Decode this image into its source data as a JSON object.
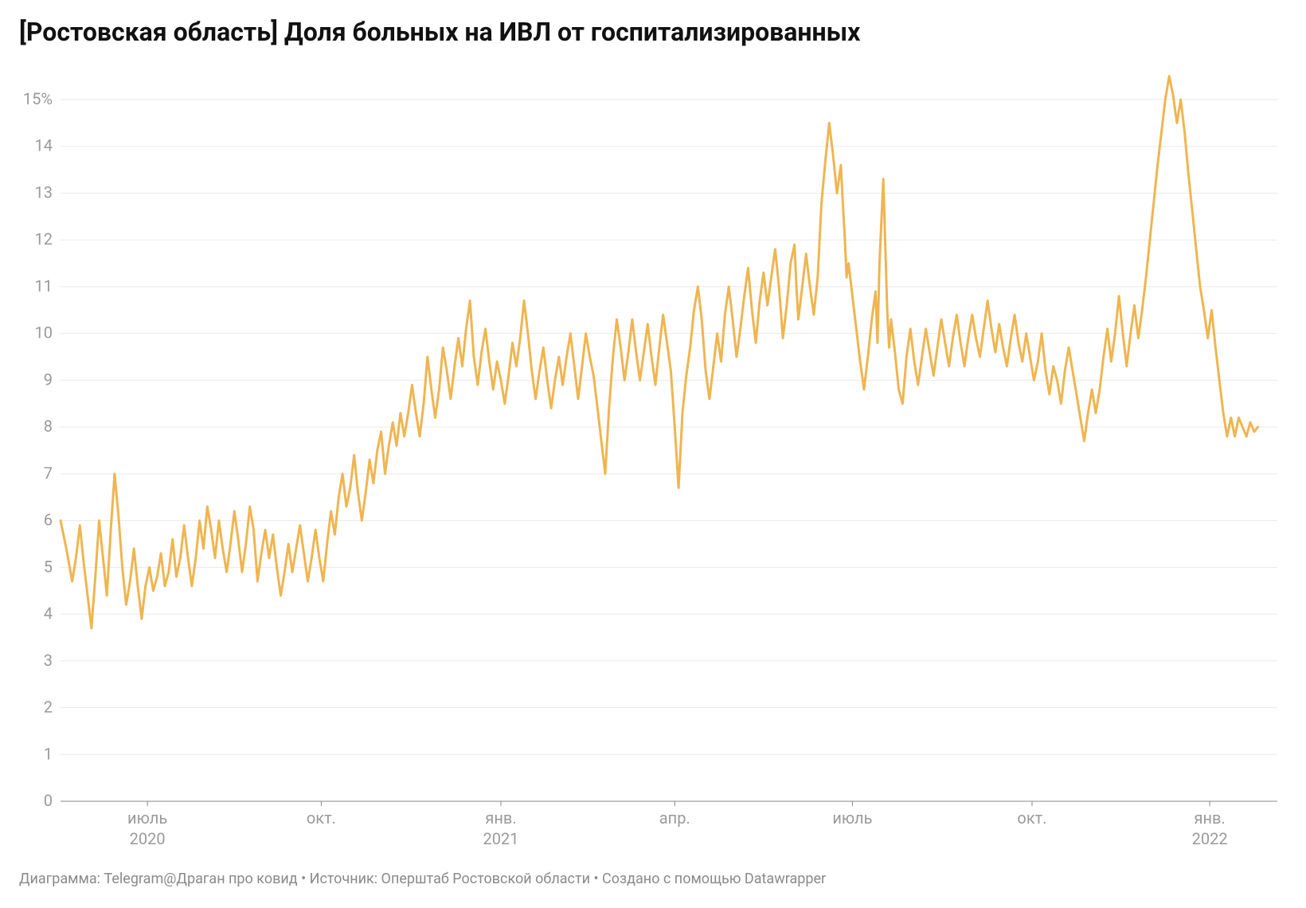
{
  "title": "[Ростовская область] Доля больных на ИВЛ от госпитализированных",
  "footer": "Диаграмма: Telegram@Драган про ковид • Источник: Оперштаб Ростовской области • Создано с помощью Datawrapper",
  "chart": {
    "type": "line",
    "background_color": "#ffffff",
    "grid_color": "#e9e9e9",
    "baseline_color": "#888888",
    "axis_text_color": "#9a9a9a",
    "series_color": "#efb550",
    "line_width": 3,
    "title_fontsize": 32,
    "axis_fontsize": 20,
    "footer_fontsize": 18,
    "x": {
      "domain_min": 0,
      "domain_max": 630,
      "ticks": [
        {
          "pos": 45,
          "label": "июль",
          "year": "2020"
        },
        {
          "pos": 135,
          "label": "окт.",
          "year": ""
        },
        {
          "pos": 228,
          "label": "янв.",
          "year": "2021"
        },
        {
          "pos": 318,
          "label": "апр.",
          "year": ""
        },
        {
          "pos": 410,
          "label": "июль",
          "year": ""
        },
        {
          "pos": 503,
          "label": "окт.",
          "year": ""
        },
        {
          "pos": 595,
          "label": "янв.",
          "year": "2022"
        }
      ]
    },
    "y": {
      "domain_min": 0,
      "domain_max": 15.8,
      "ticks": [
        0,
        1,
        2,
        3,
        4,
        5,
        6,
        7,
        8,
        9,
        10,
        11,
        12,
        13,
        14
      ],
      "top_tick_label": "15%"
    },
    "data": [
      [
        0,
        6.0
      ],
      [
        3,
        5.4
      ],
      [
        6,
        4.7
      ],
      [
        8,
        5.2
      ],
      [
        10,
        5.9
      ],
      [
        12,
        5.1
      ],
      [
        14,
        4.4
      ],
      [
        16,
        3.7
      ],
      [
        18,
        4.8
      ],
      [
        20,
        6.0
      ],
      [
        22,
        5.2
      ],
      [
        24,
        4.4
      ],
      [
        26,
        5.8
      ],
      [
        28,
        7.0
      ],
      [
        30,
        6.1
      ],
      [
        32,
        5.0
      ],
      [
        34,
        4.2
      ],
      [
        36,
        4.7
      ],
      [
        38,
        5.4
      ],
      [
        40,
        4.6
      ],
      [
        42,
        3.9
      ],
      [
        44,
        4.6
      ],
      [
        46,
        5.0
      ],
      [
        48,
        4.5
      ],
      [
        50,
        4.8
      ],
      [
        52,
        5.3
      ],
      [
        54,
        4.6
      ],
      [
        56,
        4.9
      ],
      [
        58,
        5.6
      ],
      [
        60,
        4.8
      ],
      [
        62,
        5.2
      ],
      [
        64,
        5.9
      ],
      [
        66,
        5.2
      ],
      [
        68,
        4.6
      ],
      [
        70,
        5.2
      ],
      [
        72,
        6.0
      ],
      [
        74,
        5.4
      ],
      [
        76,
        6.3
      ],
      [
        78,
        5.8
      ],
      [
        80,
        5.2
      ],
      [
        82,
        6.0
      ],
      [
        84,
        5.4
      ],
      [
        86,
        4.9
      ],
      [
        88,
        5.5
      ],
      [
        90,
        6.2
      ],
      [
        92,
        5.6
      ],
      [
        94,
        4.9
      ],
      [
        96,
        5.5
      ],
      [
        98,
        6.3
      ],
      [
        100,
        5.8
      ],
      [
        102,
        4.7
      ],
      [
        104,
        5.3
      ],
      [
        106,
        5.8
      ],
      [
        108,
        5.2
      ],
      [
        110,
        5.7
      ],
      [
        112,
        5.0
      ],
      [
        114,
        4.4
      ],
      [
        116,
        4.9
      ],
      [
        118,
        5.5
      ],
      [
        120,
        4.9
      ],
      [
        122,
        5.4
      ],
      [
        124,
        5.9
      ],
      [
        126,
        5.3
      ],
      [
        128,
        4.7
      ],
      [
        130,
        5.2
      ],
      [
        132,
        5.8
      ],
      [
        134,
        5.2
      ],
      [
        136,
        4.7
      ],
      [
        138,
        5.5
      ],
      [
        140,
        6.2
      ],
      [
        142,
        5.7
      ],
      [
        144,
        6.5
      ],
      [
        146,
        7.0
      ],
      [
        148,
        6.3
      ],
      [
        150,
        6.7
      ],
      [
        152,
        7.4
      ],
      [
        154,
        6.6
      ],
      [
        156,
        6.0
      ],
      [
        158,
        6.6
      ],
      [
        160,
        7.3
      ],
      [
        162,
        6.8
      ],
      [
        164,
        7.5
      ],
      [
        166,
        7.9
      ],
      [
        168,
        7.0
      ],
      [
        170,
        7.6
      ],
      [
        172,
        8.1
      ],
      [
        174,
        7.6
      ],
      [
        176,
        8.3
      ],
      [
        178,
        7.8
      ],
      [
        180,
        8.3
      ],
      [
        182,
        8.9
      ],
      [
        184,
        8.3
      ],
      [
        186,
        7.8
      ],
      [
        188,
        8.5
      ],
      [
        190,
        9.5
      ],
      [
        192,
        8.8
      ],
      [
        194,
        8.2
      ],
      [
        196,
        8.8
      ],
      [
        198,
        9.7
      ],
      [
        200,
        9.2
      ],
      [
        202,
        8.6
      ],
      [
        204,
        9.3
      ],
      [
        206,
        9.9
      ],
      [
        208,
        9.3
      ],
      [
        210,
        10.1
      ],
      [
        212,
        10.7
      ],
      [
        214,
        9.5
      ],
      [
        216,
        8.9
      ],
      [
        218,
        9.6
      ],
      [
        220,
        10.1
      ],
      [
        222,
        9.4
      ],
      [
        224,
        8.8
      ],
      [
        226,
        9.4
      ],
      [
        228,
        9.0
      ],
      [
        230,
        8.5
      ],
      [
        232,
        9.1
      ],
      [
        234,
        9.8
      ],
      [
        236,
        9.3
      ],
      [
        238,
        9.9
      ],
      [
        240,
        10.7
      ],
      [
        242,
        10.0
      ],
      [
        244,
        9.2
      ],
      [
        246,
        8.6
      ],
      [
        248,
        9.2
      ],
      [
        250,
        9.7
      ],
      [
        252,
        9.0
      ],
      [
        254,
        8.4
      ],
      [
        256,
        9.0
      ],
      [
        258,
        9.5
      ],
      [
        260,
        8.9
      ],
      [
        262,
        9.5
      ],
      [
        264,
        10.0
      ],
      [
        266,
        9.3
      ],
      [
        268,
        8.6
      ],
      [
        270,
        9.3
      ],
      [
        272,
        10.0
      ],
      [
        274,
        9.5
      ],
      [
        276,
        9.1
      ],
      [
        278,
        8.4
      ],
      [
        280,
        7.7
      ],
      [
        282,
        7.0
      ],
      [
        284,
        8.4
      ],
      [
        286,
        9.5
      ],
      [
        288,
        10.3
      ],
      [
        290,
        9.7
      ],
      [
        292,
        9.0
      ],
      [
        294,
        9.6
      ],
      [
        296,
        10.3
      ],
      [
        298,
        9.6
      ],
      [
        300,
        9.0
      ],
      [
        302,
        9.6
      ],
      [
        304,
        10.2
      ],
      [
        306,
        9.5
      ],
      [
        308,
        8.9
      ],
      [
        310,
        9.7
      ],
      [
        312,
        10.4
      ],
      [
        314,
        9.8
      ],
      [
        316,
        9.2
      ],
      [
        318,
        8.0
      ],
      [
        320,
        6.7
      ],
      [
        322,
        8.3
      ],
      [
        324,
        9.1
      ],
      [
        326,
        9.7
      ],
      [
        328,
        10.5
      ],
      [
        330,
        11.0
      ],
      [
        332,
        10.3
      ],
      [
        334,
        9.2
      ],
      [
        336,
        8.6
      ],
      [
        338,
        9.3
      ],
      [
        340,
        10.0
      ],
      [
        342,
        9.4
      ],
      [
        344,
        10.4
      ],
      [
        346,
        11.0
      ],
      [
        348,
        10.3
      ],
      [
        350,
        9.5
      ],
      [
        352,
        10.1
      ],
      [
        354,
        10.8
      ],
      [
        356,
        11.4
      ],
      [
        358,
        10.5
      ],
      [
        360,
        9.8
      ],
      [
        362,
        10.7
      ],
      [
        364,
        11.3
      ],
      [
        366,
        10.6
      ],
      [
        368,
        11.2
      ],
      [
        370,
        11.8
      ],
      [
        372,
        11.0
      ],
      [
        374,
        9.9
      ],
      [
        376,
        10.6
      ],
      [
        378,
        11.5
      ],
      [
        380,
        11.9
      ],
      [
        381,
        11.0
      ],
      [
        382,
        10.3
      ],
      [
        384,
        11.0
      ],
      [
        386,
        11.7
      ],
      [
        388,
        11.0
      ],
      [
        390,
        10.4
      ],
      [
        392,
        11.2
      ],
      [
        394,
        12.8
      ],
      [
        396,
        13.7
      ],
      [
        398,
        14.5
      ],
      [
        400,
        13.8
      ],
      [
        402,
        13.0
      ],
      [
        404,
        13.6
      ],
      [
        405,
        12.8
      ],
      [
        406,
        12.1
      ],
      [
        407,
        11.2
      ],
      [
        408,
        11.5
      ],
      [
        410,
        10.8
      ],
      [
        412,
        10.1
      ],
      [
        414,
        9.4
      ],
      [
        416,
        8.8
      ],
      [
        418,
        9.5
      ],
      [
        420,
        10.3
      ],
      [
        422,
        10.9
      ],
      [
        423,
        9.8
      ],
      [
        424,
        11.5
      ],
      [
        426,
        13.3
      ],
      [
        428,
        10.5
      ],
      [
        429,
        9.7
      ],
      [
        430,
        10.3
      ],
      [
        432,
        9.6
      ],
      [
        434,
        8.8
      ],
      [
        436,
        8.5
      ],
      [
        438,
        9.5
      ],
      [
        440,
        10.1
      ],
      [
        442,
        9.4
      ],
      [
        444,
        8.9
      ],
      [
        446,
        9.5
      ],
      [
        448,
        10.1
      ],
      [
        450,
        9.6
      ],
      [
        452,
        9.1
      ],
      [
        454,
        9.7
      ],
      [
        456,
        10.3
      ],
      [
        458,
        9.8
      ],
      [
        460,
        9.3
      ],
      [
        462,
        9.9
      ],
      [
        464,
        10.4
      ],
      [
        466,
        9.8
      ],
      [
        468,
        9.3
      ],
      [
        470,
        9.9
      ],
      [
        472,
        10.4
      ],
      [
        474,
        9.9
      ],
      [
        476,
        9.5
      ],
      [
        478,
        10.1
      ],
      [
        480,
        10.7
      ],
      [
        482,
        10.1
      ],
      [
        484,
        9.6
      ],
      [
        486,
        10.2
      ],
      [
        488,
        9.7
      ],
      [
        490,
        9.3
      ],
      [
        492,
        9.9
      ],
      [
        494,
        10.4
      ],
      [
        496,
        9.8
      ],
      [
        498,
        9.4
      ],
      [
        500,
        10.0
      ],
      [
        502,
        9.5
      ],
      [
        504,
        9.0
      ],
      [
        506,
        9.4
      ],
      [
        508,
        10.0
      ],
      [
        510,
        9.2
      ],
      [
        512,
        8.7
      ],
      [
        514,
        9.3
      ],
      [
        516,
        9.0
      ],
      [
        518,
        8.5
      ],
      [
        520,
        9.2
      ],
      [
        522,
        9.7
      ],
      [
        524,
        9.2
      ],
      [
        526,
        8.7
      ],
      [
        528,
        8.2
      ],
      [
        530,
        7.7
      ],
      [
        532,
        8.3
      ],
      [
        534,
        8.8
      ],
      [
        536,
        8.3
      ],
      [
        538,
        8.8
      ],
      [
        540,
        9.5
      ],
      [
        542,
        10.1
      ],
      [
        544,
        9.4
      ],
      [
        546,
        10.0
      ],
      [
        548,
        10.8
      ],
      [
        550,
        10.0
      ],
      [
        552,
        9.3
      ],
      [
        554,
        10.0
      ],
      [
        556,
        10.6
      ],
      [
        558,
        9.9
      ],
      [
        560,
        10.5
      ],
      [
        562,
        11.2
      ],
      [
        564,
        12.0
      ],
      [
        566,
        12.8
      ],
      [
        568,
        13.6
      ],
      [
        570,
        14.3
      ],
      [
        572,
        15.0
      ],
      [
        574,
        15.5
      ],
      [
        576,
        15.1
      ],
      [
        578,
        14.5
      ],
      [
        580,
        15.0
      ],
      [
        582,
        14.3
      ],
      [
        584,
        13.4
      ],
      [
        586,
        12.6
      ],
      [
        588,
        11.8
      ],
      [
        590,
        11.0
      ],
      [
        592,
        10.5
      ],
      [
        594,
        9.9
      ],
      [
        596,
        10.5
      ],
      [
        598,
        9.7
      ],
      [
        600,
        9.0
      ],
      [
        602,
        8.3
      ],
      [
        604,
        7.8
      ],
      [
        606,
        8.2
      ],
      [
        608,
        7.8
      ],
      [
        610,
        8.2
      ],
      [
        612,
        8.0
      ],
      [
        614,
        7.8
      ],
      [
        616,
        8.1
      ],
      [
        618,
        7.9
      ],
      [
        620,
        8.0
      ]
    ]
  }
}
